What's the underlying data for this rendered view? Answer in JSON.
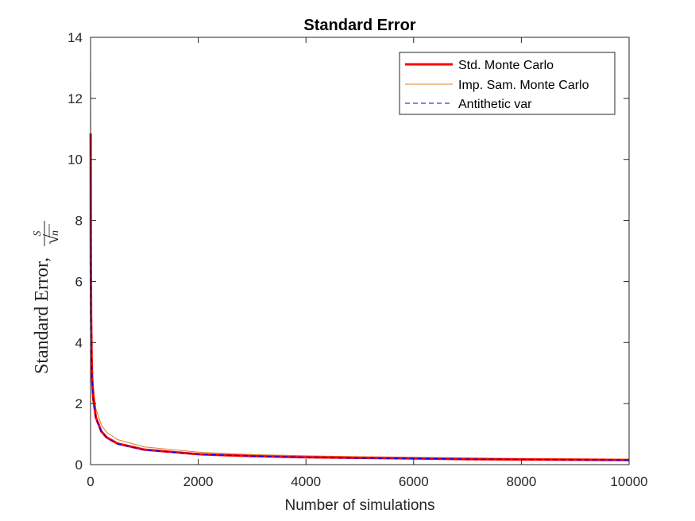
{
  "chart_data": {
    "type": "line",
    "title": "Standard Error",
    "xlabel": "Number of simulations",
    "ylabel": {
      "text": "Standard Error,",
      "numerator": "S",
      "radical": "√",
      "radicand": "n"
    },
    "xlim": [
      0,
      10000
    ],
    "ylim": [
      0,
      14
    ],
    "xticks": [
      0,
      2000,
      4000,
      6000,
      8000,
      10000
    ],
    "yticks": [
      0,
      2,
      4,
      6,
      8,
      10,
      12,
      14
    ],
    "xtick_labels": [
      "0",
      "2000",
      "4000",
      "6000",
      "8000",
      "10000"
    ],
    "ytick_labels": [
      "0",
      "2",
      "4",
      "6",
      "8",
      "10",
      "12",
      "14"
    ],
    "grid": false,
    "legend_position": "top-right",
    "series": [
      {
        "name": "Std. Monte Carlo",
        "color": "#ff0000",
        "style": "solid-thick",
        "x": [
          2,
          5,
          10,
          20,
          30,
          50,
          100,
          200,
          300,
          500,
          1000,
          2000,
          3000,
          4000,
          5000,
          6000,
          7000,
          8000,
          9000,
          10000
        ],
        "y": [
          10.85,
          6.9,
          4.9,
          3.45,
          2.8,
          2.17,
          1.54,
          1.09,
          0.89,
          0.69,
          0.49,
          0.34,
          0.28,
          0.24,
          0.22,
          0.2,
          0.18,
          0.17,
          0.16,
          0.15
        ]
      },
      {
        "name": "Imp. Sam. Monte Carlo",
        "color": "#d9822b",
        "style": "solid-thin",
        "x": [
          2,
          5,
          10,
          20,
          30,
          50,
          100,
          200,
          300,
          500,
          1000,
          2000,
          3000,
          4000,
          5000,
          6000,
          7000,
          8000,
          9000,
          10000
        ],
        "y": [
          12.9,
          8.2,
          5.8,
          4.1,
          3.35,
          2.6,
          1.83,
          1.3,
          1.06,
          0.82,
          0.58,
          0.41,
          0.33,
          0.29,
          0.26,
          0.24,
          0.22,
          0.2,
          0.19,
          0.18
        ]
      },
      {
        "name": "Antithetic var",
        "color": "#0000ff",
        "style": "dashed",
        "x": [
          2,
          5,
          10,
          20,
          30,
          50,
          100,
          200,
          300,
          500,
          1000,
          2000,
          3000,
          4000,
          5000,
          6000,
          7000,
          8000,
          9000,
          10000
        ],
        "y": [
          10.8,
          6.85,
          4.85,
          3.42,
          2.78,
          2.15,
          1.52,
          1.07,
          0.88,
          0.68,
          0.48,
          0.34,
          0.28,
          0.24,
          0.21,
          0.2,
          0.18,
          0.17,
          0.16,
          0.15
        ]
      }
    ]
  }
}
